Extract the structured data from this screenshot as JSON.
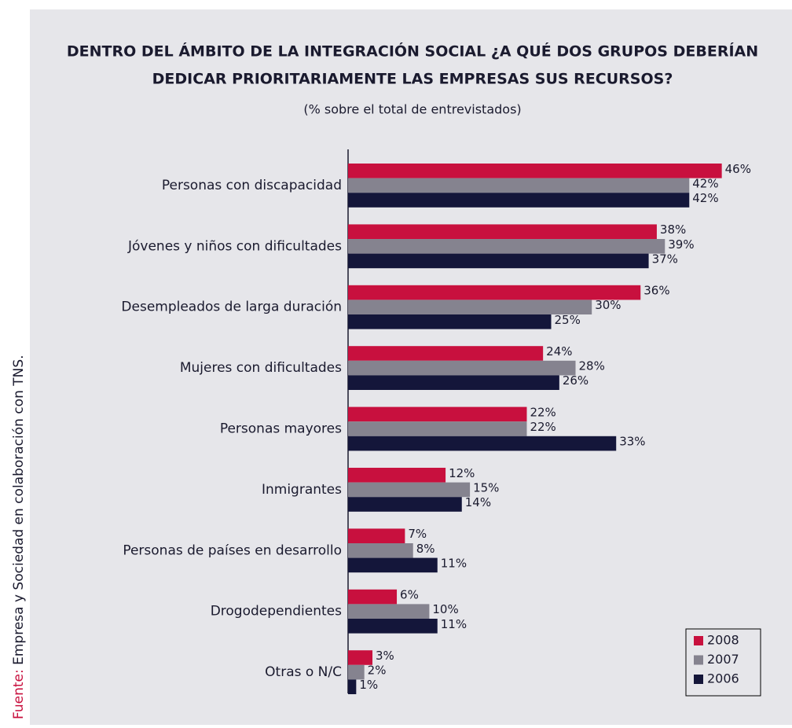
{
  "chart_data": {
    "type": "barh",
    "title": [
      "DENTRO DEL ÁMBITO DE LA INTEGRACIÓN SOCIAL ¿A QUÉ DOS GRUPOS DEBERÍAN",
      "DEDICAR PRIORITARIAMENTE LAS EMPRESAS SUS RECURSOS?"
    ],
    "subtitle": "(% sobre el total de entrevistados)",
    "source_label": "Fuente:",
    "source": "Empresa y Sociedad en colaboración con TNS.",
    "categories": [
      "Personas con discapacidad",
      "Jóvenes y niños con dificultades",
      "Desempleados de larga duración",
      "Mujeres con dificultades",
      "Personas mayores",
      "Inmigrantes",
      "Personas de países en desarrollo",
      "Drogodependientes",
      "Otras o N/C"
    ],
    "series": [
      {
        "name": "2008",
        "color": "#c8103e",
        "values": [
          46,
          38,
          36,
          24,
          22,
          12,
          7,
          6,
          3
        ],
        "value_labels": [
          "46%",
          "38%",
          "36%",
          "24%",
          "22%",
          "12%",
          "7%",
          "6%",
          "3%"
        ]
      },
      {
        "name": "2007",
        "color": "#85838f",
        "values": [
          42,
          39,
          30,
          28,
          22,
          15,
          8,
          10,
          2
        ],
        "value_labels": [
          "42%",
          "39%",
          "30%",
          "28%",
          "22%",
          "15%",
          "8%",
          "10%",
          "2%"
        ]
      },
      {
        "name": "2006",
        "color": "#14163a",
        "values": [
          42,
          37,
          25,
          26,
          33,
          14,
          11,
          11,
          1
        ],
        "value_labels": [
          "42%",
          "37%",
          "25%",
          "26%",
          "33%",
          "14%",
          "11%",
          "11%",
          "1%"
        ]
      }
    ],
    "xlim": [
      0,
      50
    ],
    "legend": "lower right"
  }
}
